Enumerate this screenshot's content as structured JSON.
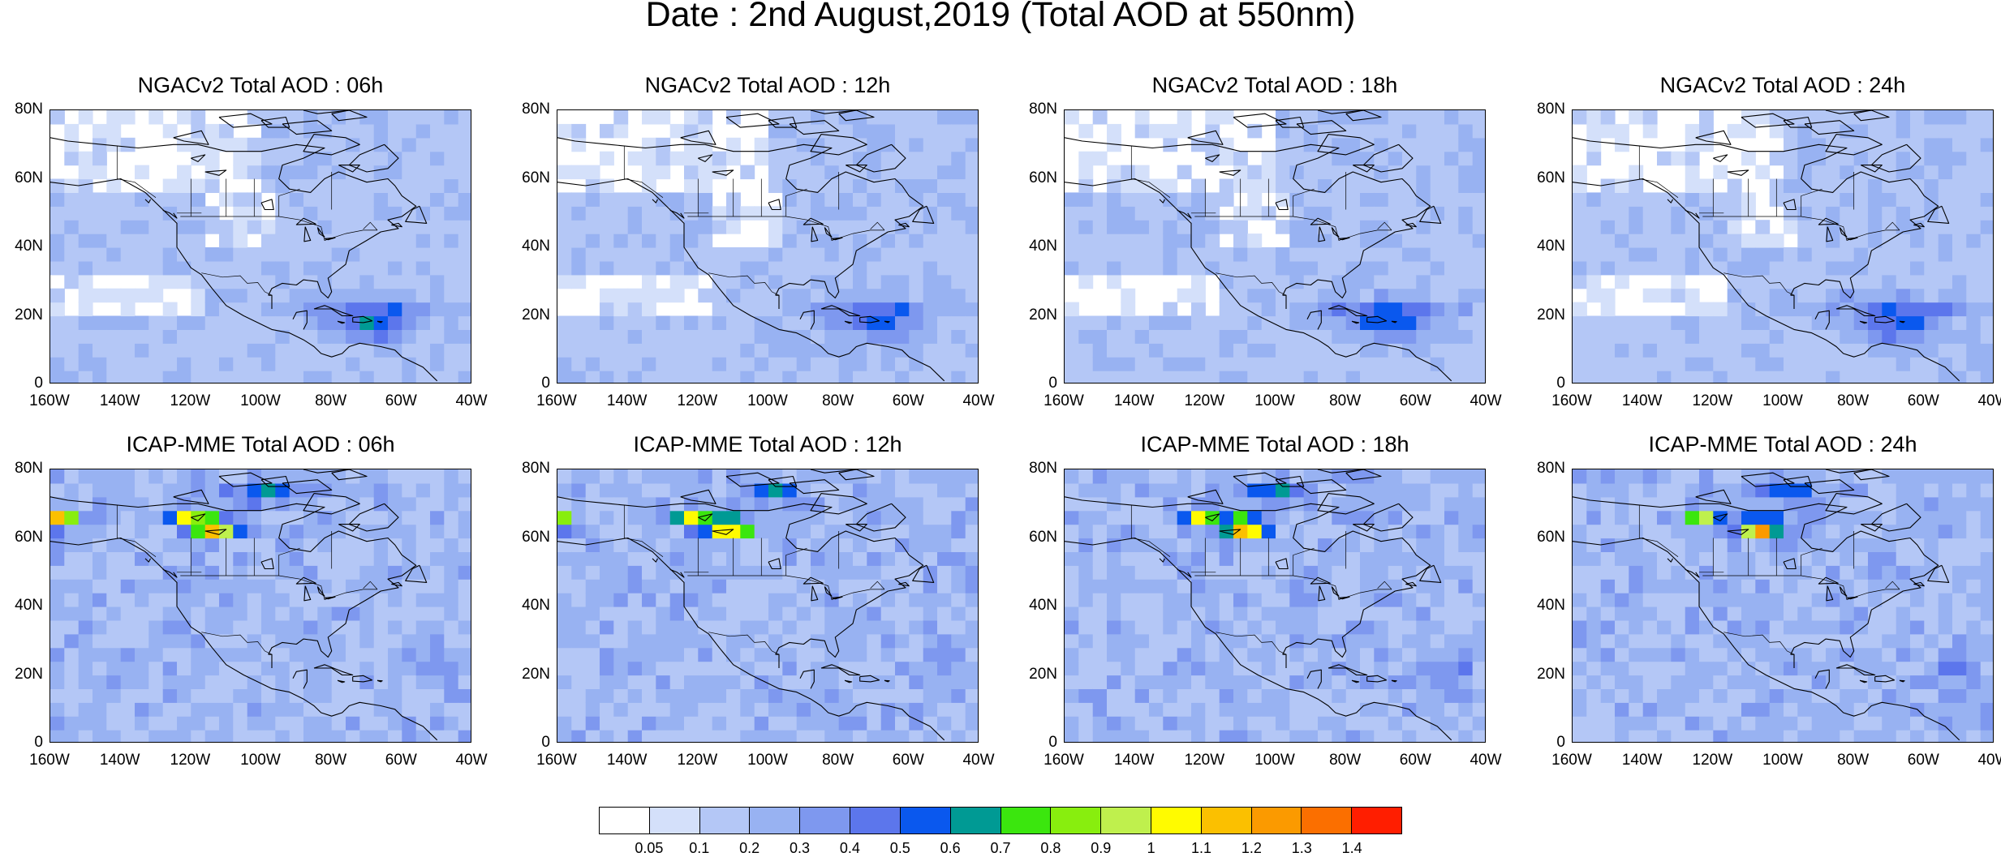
{
  "title": "Date : 2nd August,2019 (Total AOD at 550nm)",
  "panels": [
    {
      "title": "NGACv2 Total AOD : 06h",
      "model": "NGACv2",
      "hour": "06h",
      "plume": "caribbean"
    },
    {
      "title": "NGACv2 Total AOD : 12h",
      "model": "NGACv2",
      "hour": "12h",
      "plume": "caribbean"
    },
    {
      "title": "NGACv2 Total AOD : 18h",
      "model": "NGACv2",
      "hour": "18h",
      "plume": "caribbean"
    },
    {
      "title": "NGACv2 Total AOD : 24h",
      "model": "NGACv2",
      "hour": "24h",
      "plume": "caribbean"
    },
    {
      "title": "ICAP-MME Total AOD : 06h",
      "model": "ICAP-MME",
      "hour": "06h",
      "plume": "fires"
    },
    {
      "title": "ICAP-MME Total AOD : 12h",
      "model": "ICAP-MME",
      "hour": "12h",
      "plume": "fires"
    },
    {
      "title": "ICAP-MME Total AOD : 18h",
      "model": "ICAP-MME",
      "hour": "18h",
      "plume": "fires"
    },
    {
      "title": "ICAP-MME Total AOD : 24h",
      "model": "ICAP-MME",
      "hour": "24h",
      "plume": "fires"
    }
  ],
  "lat_ticks": [
    "80N",
    "60N",
    "40N",
    "20N",
    "0"
  ],
  "lon_ticks": [
    "160W",
    "140W",
    "120W",
    "100W",
    "80W",
    "60W",
    "40W"
  ],
  "lat_range": [
    0,
    80
  ],
  "lon_range": [
    -160,
    -40
  ],
  "colorbar": {
    "labels": [
      "0.05",
      "0.1",
      "0.2",
      "0.3",
      "0.4",
      "0.5",
      "0.6",
      "0.7",
      "0.8",
      "0.9",
      "1",
      "1.1",
      "1.2",
      "1.3",
      "1.4"
    ],
    "colors": [
      "#ffffff",
      "#d4e0fa",
      "#b4c7f6",
      "#98b2f2",
      "#7e98ef",
      "#5c76ec",
      "#0a58ee",
      "#009a94",
      "#3be60e",
      "#88ee0e",
      "#bff04d",
      "#fffb00",
      "#fbc000",
      "#fb9a00",
      "#fb6f00",
      "#ff1e00"
    ]
  }
}
